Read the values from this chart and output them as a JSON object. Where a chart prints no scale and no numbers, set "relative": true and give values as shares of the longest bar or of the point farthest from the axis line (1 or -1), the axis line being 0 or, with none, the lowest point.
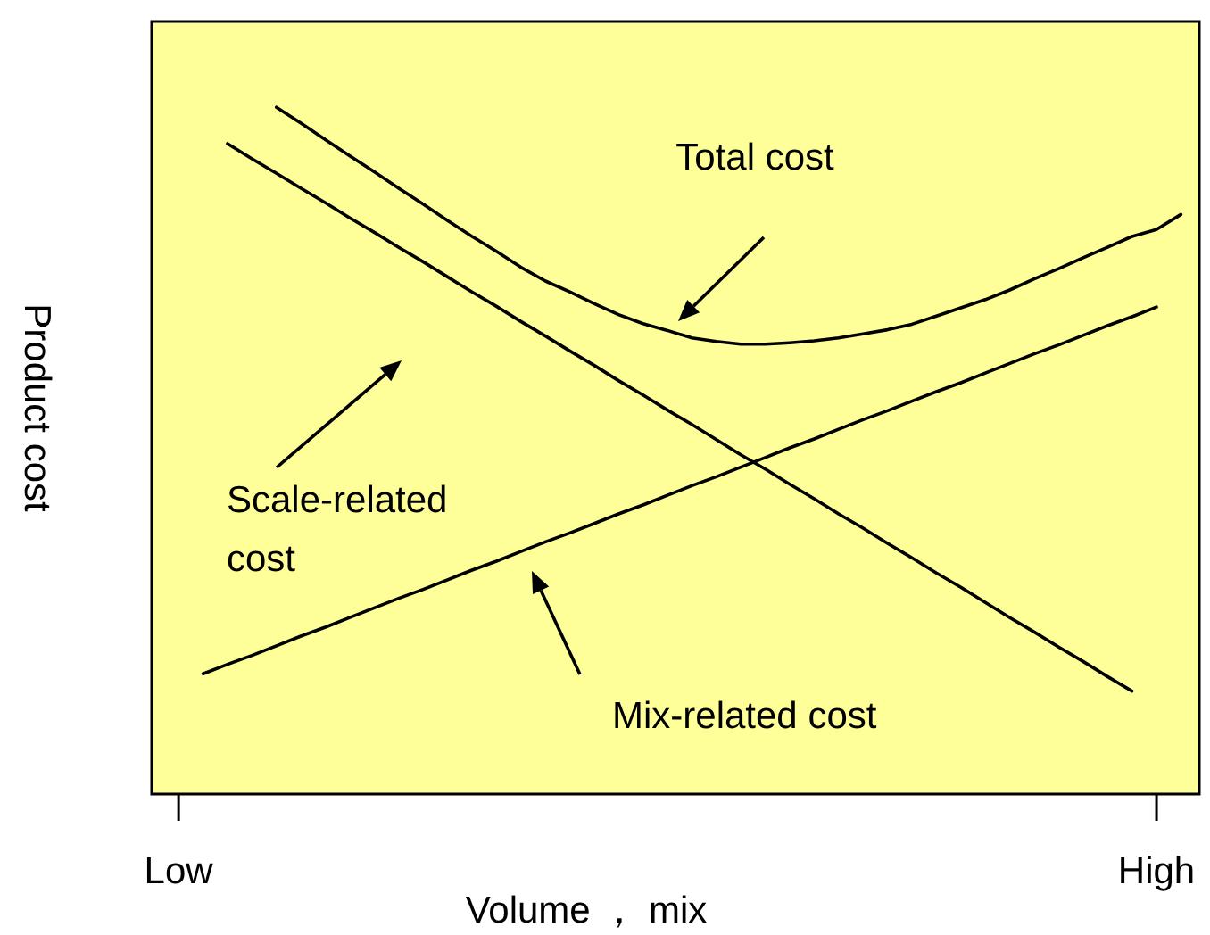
{
  "chart_data": {
    "type": "line",
    "relative": true,
    "xlabel": "Volume ， mix",
    "ylabel": "Product cost",
    "categories": [
      "Low",
      null,
      null,
      null,
      null,
      null,
      null,
      null,
      null,
      null,
      null,
      null,
      null,
      null,
      null,
      null,
      null,
      null,
      null,
      null,
      null,
      null,
      null,
      null,
      null,
      null,
      null,
      null,
      null,
      null,
      null,
      null,
      null,
      null,
      null,
      null,
      null,
      null,
      null,
      null,
      "High",
      null
    ],
    "series": [
      {
        "color": "#000000",
        "values": [
          null,
          null,
          0.947,
          0.925,
          0.904,
          0.882,
          0.861,
          0.839,
          0.818,
          0.796,
          0.775,
          0.753,
          0.731,
          0.71,
          0.688,
          0.667,
          0.645,
          0.624,
          0.602,
          0.581,
          0.559,
          0.538,
          0.516,
          0.494,
          0.473,
          0.451,
          0.43,
          0.408,
          0.387,
          0.365,
          0.344,
          0.322,
          0.301,
          0.279,
          0.257,
          0.236,
          0.214,
          0.193,
          0.171,
          0.15,
          null,
          null
        ]
      },
      {
        "color": "#000000",
        "values": [
          null,
          0.175,
          0.189,
          0.202,
          0.216,
          0.23,
          0.243,
          0.257,
          0.271,
          0.285,
          0.298,
          0.312,
          0.326,
          0.339,
          0.353,
          0.367,
          0.38,
          0.394,
          0.408,
          0.421,
          0.435,
          0.449,
          0.462,
          0.476,
          0.49,
          0.504,
          0.517,
          0.531,
          0.545,
          0.558,
          0.572,
          0.586,
          0.599,
          0.613,
          0.627,
          0.641,
          0.654,
          0.668,
          0.682,
          0.695,
          0.709,
          null
        ]
      },
      {
        "color": "#000000",
        "values": [
          null,
          null,
          null,
          null,
          1.0,
          0.977,
          0.953,
          0.929,
          0.906,
          0.882,
          0.859,
          0.835,
          0.812,
          0.79,
          0.767,
          0.747,
          0.731,
          0.714,
          0.698,
          0.685,
          0.675,
          0.664,
          0.659,
          0.655,
          0.655,
          0.657,
          0.66,
          0.664,
          0.67,
          0.676,
          0.684,
          0.696,
          0.708,
          0.72,
          0.734,
          0.75,
          0.765,
          0.781,
          0.796,
          0.812,
          0.822,
          0.844
        ]
      }
    ],
    "annotations": [
      "Total cost",
      "Scale-related cost",
      "Mix-related cost"
    ]
  }
}
